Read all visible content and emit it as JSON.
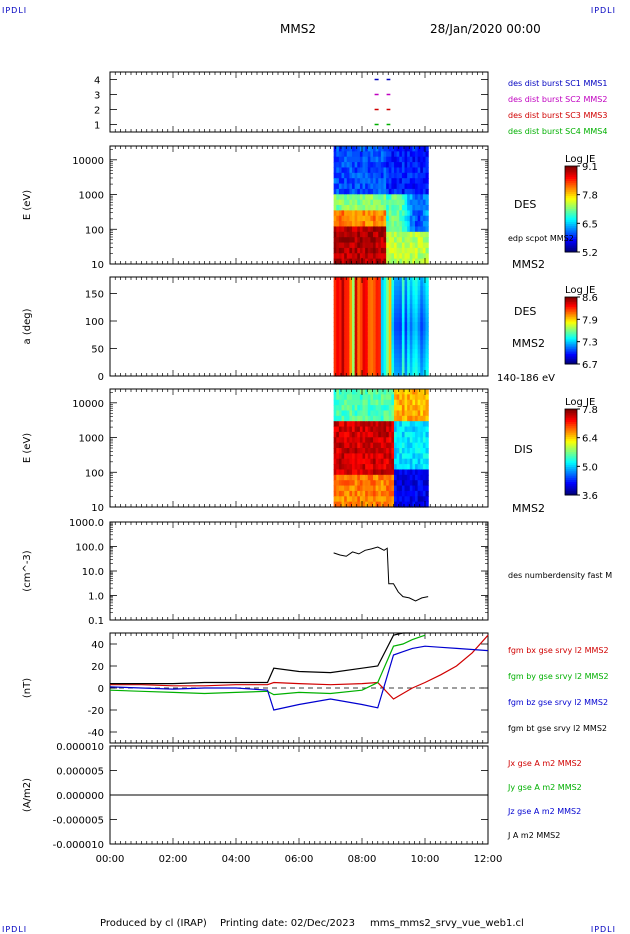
{
  "corner_label": "IPDLI",
  "header": {
    "spacecraft": "MMS2",
    "date": "28/Jan/2020 00:00"
  },
  "footer": {
    "produced": "Produced by cl (IRAP)",
    "printing": "Printing date: 02/Dec/2023",
    "file": "mms_mms2_srvy_vue_web1.cl"
  },
  "chart_data": [
    {
      "type": "scatter",
      "id": "availability",
      "ylim": [
        0.5,
        4.5
      ],
      "yticks": [
        "1",
        "2",
        "3",
        "4"
      ],
      "xlim_hours": [
        0,
        12
      ],
      "series": [
        {
          "name": "des dist burst SC1 MMS1",
          "color": "#0000c0",
          "y": 4,
          "x": [
            8.4,
            8.9
          ]
        },
        {
          "name": "des dist burst SC2 MMS2",
          "color": "#c000c0",
          "y": 3,
          "x": [
            8.4,
            8.9
          ]
        },
        {
          "name": "des dist burst SC3 MMS3",
          "color": "#d00000",
          "y": 2,
          "x": [
            8.4,
            8.9
          ]
        },
        {
          "name": "des dist burst SC4 MMS4",
          "color": "#00b000",
          "y": 1,
          "x": [
            8.4,
            8.9
          ]
        }
      ]
    },
    {
      "type": "heatmap",
      "id": "des-energy",
      "ylabel": "E (eV)",
      "yscale": "log",
      "ylim": [
        10,
        25000
      ],
      "yticks": [
        "10",
        "100",
        "1000",
        "10000"
      ],
      "xrange_hours": [
        7.1,
        10.1
      ],
      "colorbar": {
        "title": "Log JE",
        "range": [
          5.2,
          9.1
        ],
        "ticks": [
          "9.1",
          "7.8",
          "6.5",
          "5.2"
        ]
      },
      "right_labels": [
        "DES",
        "edp scpot MMS2",
        "MMS2"
      ]
    },
    {
      "type": "heatmap",
      "id": "des-pitch",
      "ylabel": "a (deg)",
      "ylim": [
        0,
        180
      ],
      "yticks": [
        "0",
        "50",
        "100",
        "150"
      ],
      "xrange_hours": [
        7.1,
        10.1
      ],
      "colorbar": {
        "title": "Log JE",
        "range": [
          6.7,
          8.6
        ],
        "ticks": [
          "8.6",
          "7.9",
          "7.3",
          "6.7"
        ]
      },
      "right_labels": [
        "DES",
        "MMS2",
        "140-186 eV"
      ]
    },
    {
      "type": "heatmap",
      "id": "dis-energy",
      "ylabel": "E (eV)",
      "yscale": "log",
      "ylim": [
        10,
        25000
      ],
      "yticks": [
        "10",
        "100",
        "1000",
        "10000"
      ],
      "xrange_hours": [
        7.1,
        10.1
      ],
      "colorbar": {
        "title": "Log JE",
        "range": [
          3.6,
          7.8
        ],
        "ticks": [
          "7.8",
          "6.4",
          "5.0",
          "3.6"
        ]
      },
      "right_labels": [
        "DIS",
        "MMS2"
      ]
    },
    {
      "type": "line",
      "id": "density",
      "ylabel": "(cm^-3)",
      "yscale": "log",
      "ylim": [
        0.1,
        1000
      ],
      "yticks": [
        "0.1",
        "1.0",
        "10.0",
        "100.0",
        "1000.0"
      ],
      "series": [
        {
          "name": "des numberdensity fast M",
          "color": "#000000",
          "x": [
            7.1,
            7.3,
            7.5,
            7.7,
            7.9,
            8.1,
            8.3,
            8.5,
            8.7,
            8.8,
            8.85,
            9.0,
            9.15,
            9.3,
            9.5,
            9.7,
            9.9,
            10.1
          ],
          "y": [
            55,
            45,
            40,
            60,
            50,
            70,
            80,
            95,
            70,
            85,
            3.0,
            3.0,
            1.4,
            0.9,
            0.8,
            0.6,
            0.8,
            0.9
          ]
        }
      ]
    },
    {
      "type": "line",
      "id": "magnetic-field",
      "ylabel": "(nT)",
      "ylim": [
        -50,
        50
      ],
      "yticks": [
        "-40",
        "-20",
        "0",
        "20",
        "40"
      ],
      "series": [
        {
          "name": "fgm bx gse srvy l2 MMS2",
          "color": "#d00000",
          "x": [
            0,
            1,
            2,
            3,
            4,
            5,
            5.2,
            6,
            7,
            8,
            8.5,
            9,
            9.3,
            9.6,
            10,
            10.5,
            11,
            11.5,
            12
          ],
          "y": [
            3,
            3,
            2,
            2,
            3,
            3,
            5,
            4,
            3,
            4,
            5,
            -10,
            -5,
            0,
            5,
            12,
            20,
            32,
            48
          ]
        },
        {
          "name": "fgm by gse srvy l2 MMS2",
          "color": "#00b000",
          "x": [
            0,
            1,
            2,
            3,
            4,
            5,
            5.2,
            6,
            7,
            8,
            8.5,
            9,
            9.3,
            9.6,
            10
          ],
          "y": [
            -2,
            -3,
            -4,
            -5,
            -4,
            -3,
            -6,
            -4,
            -5,
            -2,
            5,
            38,
            40,
            44,
            48
          ]
        },
        {
          "name": "fgm bz gse srvy l2 MMS2",
          "color": "#0000d0",
          "x": [
            0,
            1,
            2,
            3,
            4,
            5,
            5.2,
            6,
            7,
            8,
            8.5,
            9,
            9.3,
            9.6,
            10,
            10.5,
            11,
            11.5,
            12
          ],
          "y": [
            1,
            0,
            -1,
            0,
            0,
            -2,
            -20,
            -15,
            -10,
            -15,
            -18,
            30,
            33,
            36,
            38,
            37,
            36,
            35,
            34
          ]
        },
        {
          "name": "fgm bt gse srvy l2 MMS2",
          "color": "#000000",
          "x": [
            0,
            1,
            2,
            3,
            4,
            5,
            5.2,
            6,
            7,
            8,
            8.5,
            9,
            9.3,
            9.6
          ],
          "y": [
            4,
            4,
            4,
            5,
            5,
            5,
            18,
            15,
            14,
            18,
            20,
            48,
            50,
            50
          ]
        }
      ]
    },
    {
      "type": "line",
      "id": "current-density",
      "ylabel": "(A/m2)",
      "ylim": [
        -1e-05,
        1e-05
      ],
      "yticks": [
        "-0.000010",
        "-0.000005",
        "0.000000",
        "0.000005",
        "0.000010"
      ],
      "xticks": [
        "00:00",
        "02:00",
        "04:00",
        "06:00",
        "08:00",
        "10:00",
        "12:00"
      ],
      "xlim_hours": [
        0,
        12
      ],
      "series": [
        {
          "name": "Jx gse A m2 MMS2",
          "color": "#d00000"
        },
        {
          "name": "Jy gse A m2 MMS2",
          "color": "#00b000"
        },
        {
          "name": "Jz gse A m2 MMS2",
          "color": "#0000d0"
        },
        {
          "name": "J A m2 MMS2",
          "color": "#000000"
        }
      ]
    }
  ]
}
